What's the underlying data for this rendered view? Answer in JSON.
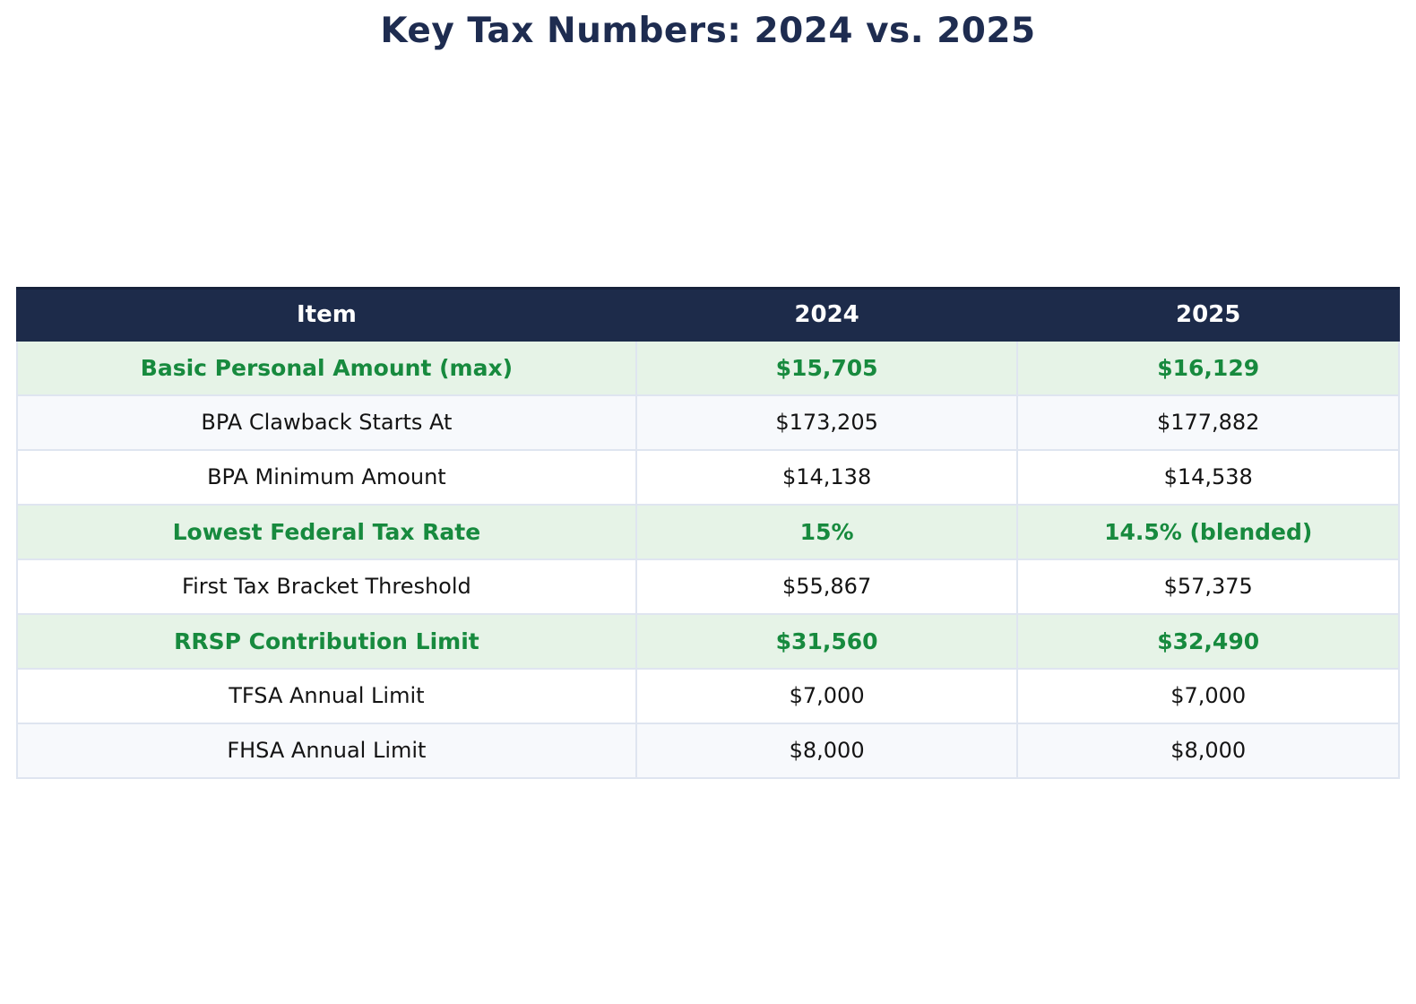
{
  "title": "Key Tax Numbers: 2024 vs. 2025",
  "colors": {
    "title_text": "#1e2c50",
    "header_bg": "#1d2b4a",
    "header_text": "#ffffff",
    "highlight_row_bg": "#e6f3e7",
    "highlight_row_text": "#178a3e",
    "stripe_row_bg": "#f7f9fc",
    "body_text": "#141414",
    "grid_line": "#dfe5f0"
  },
  "table": {
    "columns": [
      "Item",
      "2024",
      "2025"
    ],
    "rows": [
      {
        "item": "Basic Personal Amount (max)",
        "y2024": "$15,705",
        "y2025": "$16,129",
        "highlight": true
      },
      {
        "item": "BPA Clawback Starts At",
        "y2024": "$173,205",
        "y2025": "$177,882",
        "highlight": false
      },
      {
        "item": "BPA Minimum Amount",
        "y2024": "$14,138",
        "y2025": "$14,538",
        "highlight": false
      },
      {
        "item": "Lowest Federal Tax Rate",
        "y2024": "15%",
        "y2025": "14.5% (blended)",
        "highlight": true
      },
      {
        "item": "First Tax Bracket Threshold",
        "y2024": "$55,867",
        "y2025": "$57,375",
        "highlight": false
      },
      {
        "item": "RRSP Contribution Limit",
        "y2024": "$31,560",
        "y2025": "$32,490",
        "highlight": true
      },
      {
        "item": "TFSA Annual Limit",
        "y2024": "$7,000",
        "y2025": "$7,000",
        "highlight": false
      },
      {
        "item": "FHSA Annual Limit",
        "y2024": "$8,000",
        "y2025": "$8,000",
        "highlight": false
      }
    ]
  },
  "chart_data": {
    "type": "table",
    "title": "Key Tax Numbers: 2024 vs. 2025",
    "columns": [
      "Item",
      "2024",
      "2025"
    ],
    "rows": [
      [
        "Basic Personal Amount (max)",
        "$15,705",
        "$16,129"
      ],
      [
        "BPA Clawback Starts At",
        "$173,205",
        "$177,882"
      ],
      [
        "BPA Minimum Amount",
        "$14,138",
        "$14,538"
      ],
      [
        "Lowest Federal Tax Rate",
        "15%",
        "14.5% (blended)"
      ],
      [
        "First Tax Bracket Threshold",
        "$55,867",
        "$57,375"
      ],
      [
        "RRSP Contribution Limit",
        "$31,560",
        "$32,490"
      ],
      [
        "TFSA Annual Limit",
        "$7,000",
        "$7,000"
      ],
      [
        "FHSA Annual Limit",
        "$8,000",
        "$8,000"
      ]
    ],
    "highlighted_row_indices": [
      0,
      3,
      5
    ],
    "legend_position": "none",
    "grid": true
  }
}
